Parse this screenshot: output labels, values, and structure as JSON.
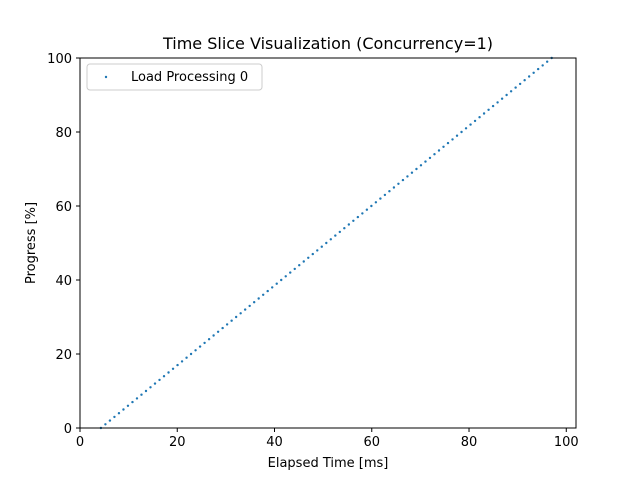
{
  "chart_data": {
    "type": "scatter",
    "title": "Time Slice Visualization (Concurrency=1)",
    "xlabel": "Elapsed Time [ms]",
    "ylabel": "Progress [%]",
    "xlim": [
      0,
      102
    ],
    "ylim": [
      0,
      100
    ],
    "xticks": [
      0,
      20,
      40,
      60,
      80,
      100
    ],
    "yticks": [
      0,
      20,
      40,
      60,
      80,
      100
    ],
    "legend_position": "top-left",
    "grid": false,
    "series": [
      {
        "name": "Load Processing 0",
        "color": "#1f77b4",
        "x_start": 4.3,
        "x_end": 97.0,
        "y_start": 0,
        "y_end": 100,
        "point_count": 101
      }
    ]
  }
}
